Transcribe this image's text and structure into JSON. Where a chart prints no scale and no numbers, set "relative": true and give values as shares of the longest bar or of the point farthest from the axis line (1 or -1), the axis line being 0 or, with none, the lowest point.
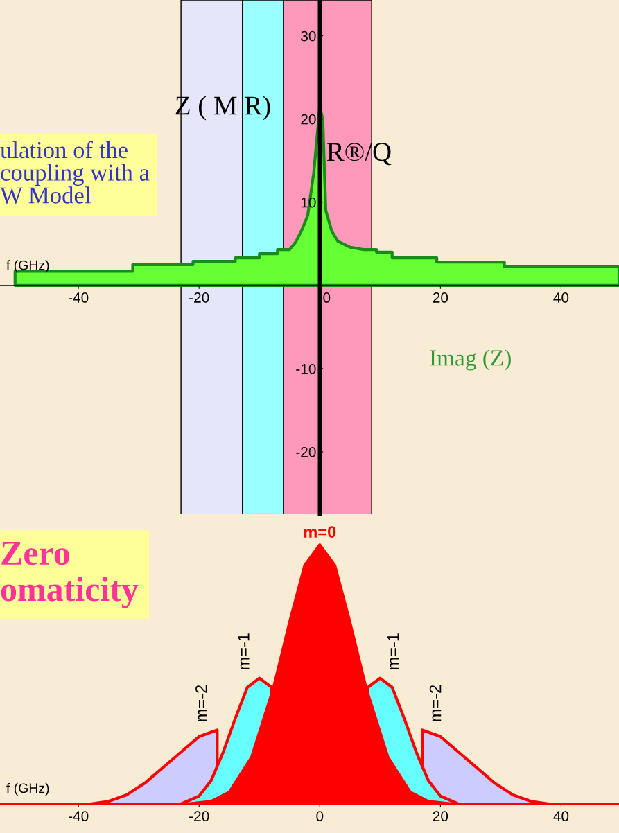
{
  "chart_data": [
    {
      "type": "area",
      "xlabel": "f (GHz)",
      "ylabel": "Z ( M R)",
      "annotations": [
        "ulation of the\ncoupling with a\nW Model",
        "R®/Q",
        "Imag (Z)"
      ],
      "series": [
        {
          "color": "#66ff33",
          "x": [
            -50.5,
            -31,
            -31,
            -21,
            -21,
            -14,
            -14,
            -10,
            -10,
            -7,
            -7,
            -5,
            -4,
            -3,
            -2,
            -1,
            -0.3,
            0,
            0.5,
            1,
            2,
            3,
            5,
            7.3,
            9.4,
            9.4,
            12,
            12,
            19.4,
            19.4,
            30.6,
            30.6,
            49.6
          ],
          "values": [
            1.7,
            1.7,
            2.5,
            2.5,
            2.9,
            2.9,
            3.3,
            3.3,
            3.8,
            3.8,
            4.3,
            4.3,
            5.2,
            6.6,
            8.4,
            13.5,
            19,
            21.5,
            20,
            9,
            6.5,
            5.3,
            4.6,
            4.3,
            4.3,
            4,
            4,
            3.3,
            3.3,
            2.8,
            2.8,
            2.3,
            2.3
          ]
        }
      ],
      "bands": [
        {
          "axis": "x",
          "from": -23,
          "to": -12.8,
          "color": "#e6e6fa"
        },
        {
          "axis": "x",
          "from": -12.8,
          "to": -6,
          "color": "#99ffff"
        },
        {
          "axis": "x",
          "from": -6,
          "to": 8.6,
          "color": "#ff99bb"
        }
      ],
      "xlim": [
        -53,
        49.6
      ],
      "xticks": [
        -40,
        -20,
        0,
        20,
        40
      ],
      "ylim": [
        -27.5,
        34.3
      ],
      "yticks": [
        -20,
        -10,
        10,
        20,
        30
      ]
    },
    {
      "type": "area",
      "xlabel": "f (GHz)",
      "relative": true,
      "annotations": [
        "Zero\nomaticity"
      ],
      "series": [
        {
          "name": "m=-2",
          "color": "#ccccff",
          "x": [
            -38,
            -35,
            -32,
            -29,
            -26,
            -23,
            -20,
            -17
          ],
          "values": [
            0,
            0.01,
            0.035,
            0.08,
            0.14,
            0.2,
            0.26,
            0.285
          ]
        },
        {
          "name": "m=-2",
          "color": "#ccccff",
          "x": [
            17,
            20,
            23,
            26,
            29,
            32,
            35,
            38
          ],
          "values": [
            0.285,
            0.26,
            0.2,
            0.14,
            0.08,
            0.035,
            0.01,
            0
          ]
        },
        {
          "name": "m=-1",
          "color": "#66ffff",
          "x": [
            -23,
            -20,
            -18,
            -16,
            -14,
            -12,
            -10,
            -8
          ],
          "values": [
            0,
            0.03,
            0.09,
            0.2,
            0.33,
            0.45,
            0.485,
            0.45
          ]
        },
        {
          "name": "m=-1",
          "color": "#66ffff",
          "x": [
            8,
            10,
            12,
            14,
            16,
            18,
            20,
            23
          ],
          "values": [
            0.45,
            0.485,
            0.45,
            0.33,
            0.2,
            0.09,
            0.03,
            0
          ]
        },
        {
          "name": "m=0",
          "color": "#ff0000",
          "x": [
            -22,
            -18,
            -15,
            -11.3,
            -7.7,
            -4.9,
            -2.5,
            0,
            2.5,
            4.9,
            7.7,
            11.3,
            15,
            18,
            22
          ],
          "values": [
            0,
            0.01,
            0.045,
            0.18,
            0.445,
            0.71,
            0.92,
            1,
            0.92,
            0.71,
            0.445,
            0.18,
            0.045,
            0.01,
            0
          ]
        }
      ],
      "xlim": [
        -53,
        49.6
      ],
      "xticks": [
        -40,
        -20,
        0,
        20,
        40
      ]
    }
  ]
}
